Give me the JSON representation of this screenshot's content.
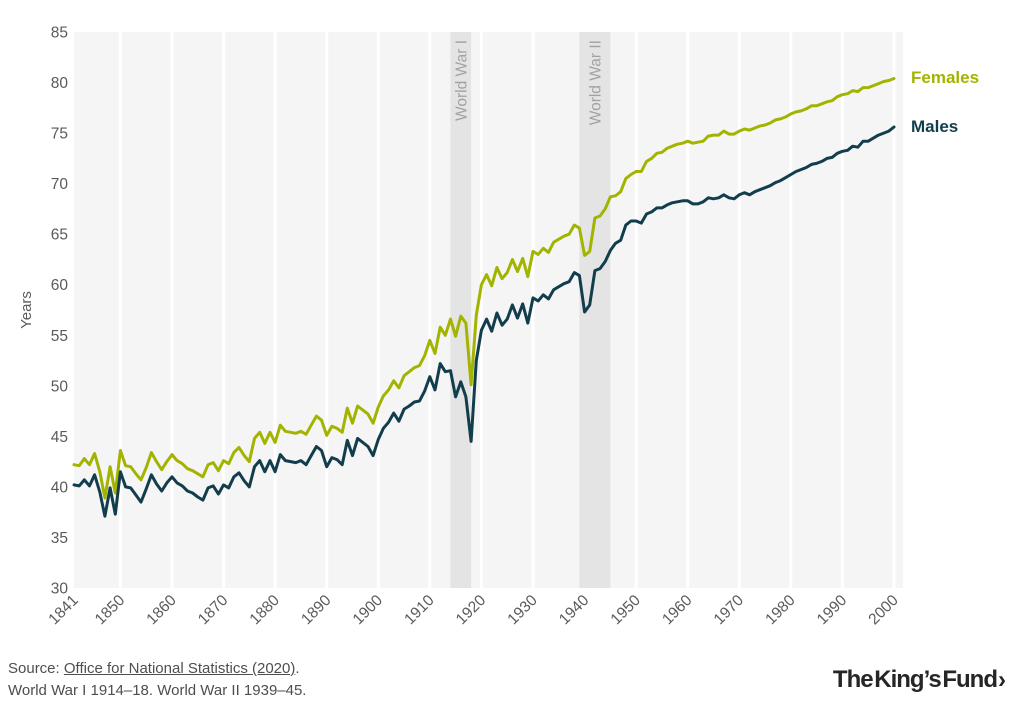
{
  "chart": {
    "legend": {
      "females": "Females",
      "males": "Males"
    },
    "colors": {
      "plot_background": "#f5f5f5",
      "gridline": "#ffffff",
      "war_band": "#e0e0e0",
      "war_label": "#a2a2a2",
      "tick_label": "#595a5e",
      "females": "#a3b400",
      "males": "#123d4d"
    }
  },
  "chart_data": {
    "type": "line",
    "title": "",
    "xlabel": "",
    "ylabel": "Years",
    "xlim": [
      1841,
      2000
    ],
    "ylim": [
      30,
      85
    ],
    "x_ticks": [
      1841,
      1850,
      1860,
      1870,
      1880,
      1890,
      1900,
      1910,
      1920,
      1930,
      1940,
      1950,
      1960,
      1970,
      1980,
      1990,
      2000
    ],
    "y_ticks": [
      30,
      35,
      40,
      45,
      50,
      55,
      60,
      65,
      70,
      75,
      80,
      85
    ],
    "grid": "vertical-white",
    "legend_position": "right",
    "annotations": [
      {
        "label": "World War I",
        "from": 1914,
        "to": 1918
      },
      {
        "label": "World War II",
        "from": 1939,
        "to": 1945
      }
    ],
    "x": [
      1841,
      1842,
      1843,
      1844,
      1845,
      1846,
      1847,
      1848,
      1849,
      1850,
      1851,
      1852,
      1853,
      1854,
      1855,
      1856,
      1857,
      1858,
      1859,
      1860,
      1861,
      1862,
      1863,
      1864,
      1865,
      1866,
      1867,
      1868,
      1869,
      1870,
      1871,
      1872,
      1873,
      1874,
      1875,
      1876,
      1877,
      1878,
      1879,
      1880,
      1881,
      1882,
      1883,
      1884,
      1885,
      1886,
      1887,
      1888,
      1889,
      1890,
      1891,
      1892,
      1893,
      1894,
      1895,
      1896,
      1897,
      1898,
      1899,
      1900,
      1901,
      1902,
      1903,
      1904,
      1905,
      1906,
      1907,
      1908,
      1909,
      1910,
      1911,
      1912,
      1913,
      1914,
      1915,
      1916,
      1917,
      1918,
      1919,
      1920,
      1921,
      1922,
      1923,
      1924,
      1925,
      1926,
      1927,
      1928,
      1929,
      1930,
      1931,
      1932,
      1933,
      1934,
      1935,
      1936,
      1937,
      1938,
      1939,
      1940,
      1941,
      1942,
      1943,
      1944,
      1945,
      1946,
      1947,
      1948,
      1949,
      1950,
      1951,
      1952,
      1953,
      1954,
      1955,
      1956,
      1957,
      1958,
      1959,
      1960,
      1961,
      1962,
      1963,
      1964,
      1965,
      1966,
      1967,
      1968,
      1969,
      1970,
      1971,
      1972,
      1973,
      1974,
      1975,
      1976,
      1977,
      1978,
      1979,
      1980,
      1981,
      1982,
      1983,
      1984,
      1985,
      1986,
      1987,
      1988,
      1989,
      1990,
      1991,
      1992,
      1993,
      1994,
      1995,
      1996,
      1997,
      1998,
      1999,
      2000
    ],
    "series": [
      {
        "name": "Females",
        "color": "#a3b400",
        "values": [
          42.2,
          42.1,
          42.8,
          42.2,
          43.3,
          41.5,
          38.9,
          42.0,
          39.4,
          43.6,
          42.1,
          42.0,
          41.3,
          40.7,
          41.9,
          43.4,
          42.5,
          41.7,
          42.5,
          43.2,
          42.6,
          42.3,
          41.8,
          41.6,
          41.3,
          41.0,
          42.2,
          42.4,
          41.6,
          42.6,
          42.3,
          43.4,
          43.9,
          43.1,
          42.5,
          44.8,
          45.4,
          44.3,
          45.4,
          44.4,
          46.1,
          45.5,
          45.4,
          45.3,
          45.5,
          45.2,
          46.1,
          47.0,
          46.6,
          45.1,
          46.0,
          45.8,
          45.4,
          47.8,
          46.3,
          48.0,
          47.6,
          47.2,
          46.3,
          47.9,
          49.0,
          49.6,
          50.5,
          49.8,
          51.0,
          51.4,
          51.8,
          52.0,
          53.0,
          54.5,
          53.2,
          55.8,
          55.0,
          56.6,
          54.9,
          56.9,
          56.2,
          50.1,
          57.0,
          60.0,
          61.0,
          59.9,
          61.7,
          60.6,
          61.2,
          62.5,
          61.3,
          62.6,
          60.8,
          63.3,
          63.0,
          63.6,
          63.2,
          64.2,
          64.5,
          64.8,
          65.0,
          65.9,
          65.6,
          62.9,
          63.3,
          66.6,
          66.8,
          67.5,
          68.7,
          68.8,
          69.2,
          70.5,
          70.9,
          71.2,
          71.2,
          72.2,
          72.5,
          73.0,
          73.1,
          73.5,
          73.7,
          73.9,
          74.0,
          74.2,
          74.0,
          74.1,
          74.2,
          74.7,
          74.8,
          74.8,
          75.2,
          74.9,
          74.9,
          75.2,
          75.4,
          75.3,
          75.5,
          75.7,
          75.8,
          76.0,
          76.3,
          76.4,
          76.6,
          76.9,
          77.1,
          77.2,
          77.4,
          77.7,
          77.7,
          77.9,
          78.1,
          78.2,
          78.6,
          78.8,
          78.9,
          79.2,
          79.1,
          79.5,
          79.5,
          79.7,
          79.9,
          80.1,
          80.2,
          80.4
        ]
      },
      {
        "name": "Males",
        "color": "#123d4d",
        "values": [
          40.2,
          40.1,
          40.7,
          40.1,
          41.2,
          39.5,
          37.1,
          39.9,
          37.3,
          41.5,
          40.0,
          39.9,
          39.2,
          38.5,
          39.8,
          41.2,
          40.3,
          39.6,
          40.4,
          41.0,
          40.4,
          40.1,
          39.6,
          39.4,
          39.0,
          38.7,
          39.9,
          40.1,
          39.3,
          40.2,
          39.9,
          41.0,
          41.4,
          40.6,
          40.0,
          42.0,
          42.6,
          41.5,
          42.6,
          41.5,
          43.2,
          42.6,
          42.5,
          42.4,
          42.6,
          42.2,
          43.1,
          44.0,
          43.6,
          42.0,
          42.9,
          42.7,
          42.2,
          44.6,
          43.1,
          44.8,
          44.4,
          44.0,
          43.1,
          44.7,
          45.8,
          46.4,
          47.3,
          46.5,
          47.7,
          48.0,
          48.4,
          48.5,
          49.5,
          50.9,
          49.6,
          52.2,
          51.4,
          51.5,
          48.9,
          50.4,
          48.9,
          44.5,
          52.5,
          55.5,
          56.6,
          55.4,
          57.2,
          56.0,
          56.6,
          58.0,
          56.7,
          58.1,
          56.2,
          58.7,
          58.4,
          59.0,
          58.6,
          59.5,
          59.8,
          60.1,
          60.3,
          61.2,
          60.9,
          57.3,
          58.0,
          61.4,
          61.6,
          62.3,
          63.4,
          64.1,
          64.4,
          65.9,
          66.3,
          66.3,
          66.1,
          67.0,
          67.2,
          67.6,
          67.6,
          67.9,
          68.1,
          68.2,
          68.3,
          68.3,
          68.0,
          68.0,
          68.2,
          68.6,
          68.5,
          68.6,
          68.9,
          68.6,
          68.5,
          68.9,
          69.1,
          68.9,
          69.2,
          69.4,
          69.6,
          69.8,
          70.1,
          70.3,
          70.6,
          70.9,
          71.2,
          71.4,
          71.6,
          71.9,
          72.0,
          72.2,
          72.5,
          72.6,
          73.0,
          73.2,
          73.3,
          73.7,
          73.6,
          74.2,
          74.2,
          74.5,
          74.8,
          75.0,
          75.2,
          75.6
        ]
      }
    ]
  },
  "footer": {
    "source_prefix": "Source: ",
    "source_link": "Office for National Statistics (2020)",
    "source_suffix": ".",
    "note": "World War I 1914–18. World War II 1939–45.",
    "logo_text": "The King’s Fund",
    "logo_chevron": "›"
  }
}
